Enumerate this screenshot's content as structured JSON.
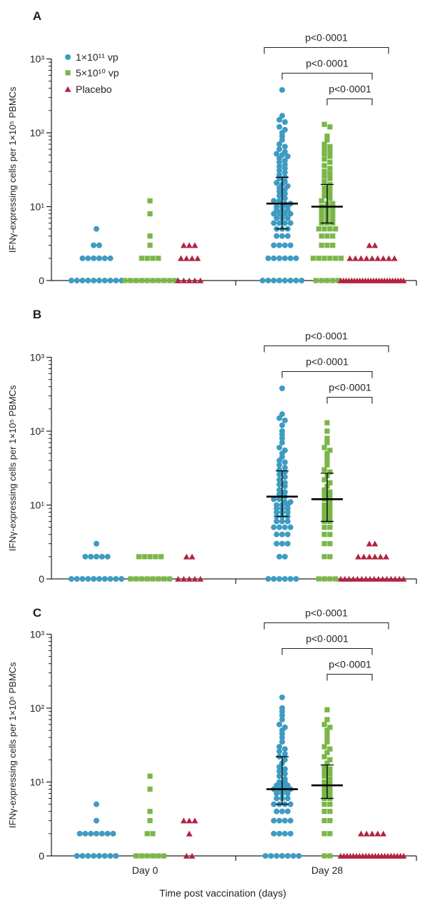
{
  "figure": {
    "xlabel": "Time post vaccination (days)",
    "ylabel": "IFNγ-expressing cells per 1×10⁵ PBMCs",
    "x_groups": [
      "Day 0",
      "Day 28"
    ],
    "y_tick_labels": [
      "0",
      "10¹",
      "10²",
      "10³"
    ],
    "legend": [
      {
        "label": "1×10¹¹ vp",
        "marker": "circle",
        "color": "#3e9bc1"
      },
      {
        "label": "5×10¹⁰ vp",
        "marker": "square",
        "color": "#7ab648"
      },
      {
        "label": "Placebo",
        "marker": "triangle",
        "color": "#b0243e"
      }
    ],
    "colors": {
      "axis": "#231f20",
      "error_bar": "#000000"
    }
  },
  "chart_data": [
    {
      "type": "scatter",
      "panel": "A",
      "yscale": "log (0 shown at baseline)",
      "ylim": [
        0,
        1000
      ],
      "groups": [
        "Day 0",
        "Day 28"
      ],
      "series": [
        {
          "name": "1×10¹¹ vp",
          "day0": {
            "values": [
              0,
              0,
              0,
              0,
              0,
              0,
              0,
              0,
              0,
              0,
              2,
              2,
              2,
              2,
              2,
              2,
              3,
              3,
              5
            ]
          },
          "day28": {
            "values": [
              0,
              0,
              0,
              0,
              0,
              0,
              0,
              0,
              2,
              2,
              2,
              2,
              2,
              2,
              3,
              3,
              3,
              3,
              4,
              4,
              4,
              5,
              5,
              5,
              6,
              6,
              6,
              6,
              7,
              7,
              7,
              8,
              8,
              8,
              8,
              9,
              9,
              9,
              10,
              10,
              10,
              11,
              11,
              12,
              12,
              13,
              14,
              15,
              16,
              17,
              18,
              19,
              20,
              21,
              22,
              24,
              25,
              27,
              29,
              31,
              33,
              35,
              37,
              40,
              42,
              45,
              48,
              50,
              52,
              55,
              60,
              65,
              70,
              80,
              90,
              100,
              110,
              120,
              140,
              150,
              170,
              380
            ],
            "median": 11,
            "iqr": [
              5,
              25
            ]
          }
        },
        {
          "name": "5×10¹⁰ vp",
          "day0": {
            "values": [
              0,
              0,
              0,
              0,
              0,
              0,
              0,
              0,
              0,
              0,
              2,
              2,
              2,
              2,
              3,
              4,
              8,
              12
            ]
          },
          "day28": {
            "values": [
              0,
              0,
              0,
              0,
              0,
              2,
              2,
              2,
              2,
              2,
              2,
              3,
              3,
              3,
              4,
              4,
              4,
              5,
              5,
              5,
              5,
              6,
              6,
              6,
              7,
              7,
              7,
              8,
              8,
              8,
              9,
              9,
              9,
              10,
              10,
              10,
              11,
              11,
              12,
              13,
              14,
              15,
              16,
              17,
              18,
              20,
              22,
              24,
              26,
              28,
              30,
              33,
              36,
              40,
              44,
              48,
              52,
              56,
              60,
              65,
              70,
              80,
              90,
              120,
              130
            ],
            "median": 10,
            "iqr": [
              6,
              20
            ]
          }
        },
        {
          "name": "Placebo",
          "day0": {
            "values": [
              0,
              0,
              0,
              0,
              0,
              2,
              2,
              2,
              2,
              3,
              3,
              3
            ]
          },
          "day28": {
            "values": [
              0,
              0,
              0,
              0,
              0,
              0,
              0,
              0,
              0,
              0,
              0,
              0,
              0,
              0,
              0,
              1,
              1,
              1,
              1,
              1,
              1,
              1,
              1,
              1,
              2,
              2,
              2,
              2,
              2,
              2,
              2,
              2,
              2,
              3,
              3
            ]
          }
        }
      ],
      "annotations": [
        {
          "text": "p<0·0001",
          "from": "1×10¹¹ vp Day 28",
          "to": "Placebo Day 28"
        },
        {
          "text": "p<0·0001",
          "from": "1×10¹¹ vp Day 28",
          "to": "Placebo Day 28"
        },
        {
          "text": "p<0·0001",
          "from": "5×10¹⁰ vp Day 28",
          "to": "Placebo Day 28"
        }
      ]
    },
    {
      "type": "scatter",
      "panel": "B",
      "yscale": "log (0 shown at baseline)",
      "ylim": [
        0,
        1000
      ],
      "groups": [
        "Day 0",
        "Day 28"
      ],
      "series": [
        {
          "name": "1×10¹¹ vp",
          "day0": {
            "values": [
              0,
              0,
              0,
              0,
              0,
              0,
              0,
              0,
              0,
              0,
              2,
              2,
              2,
              2,
              2,
              3
            ]
          },
          "day28": {
            "values": [
              0,
              0,
              0,
              0,
              0,
              0,
              2,
              2,
              3,
              3,
              3,
              4,
              4,
              4,
              5,
              5,
              5,
              5,
              6,
              6,
              6,
              7,
              7,
              7,
              8,
              8,
              8,
              9,
              9,
              9,
              10,
              10,
              10,
              11,
              11,
              12,
              12,
              13,
              14,
              15,
              16,
              18,
              19,
              20,
              22,
              24,
              26,
              28,
              30,
              32,
              35,
              38,
              40,
              45,
              50,
              55,
              60,
              70,
              80,
              90,
              100,
              120,
              140,
              150,
              170,
              380
            ],
            "median": 13,
            "iqr": [
              7,
              29
            ]
          }
        },
        {
          "name": "5×10¹⁰ vp",
          "day0": {
            "values": [
              0,
              0,
              0,
              0,
              0,
              0,
              0,
              0,
              2,
              2,
              2,
              2,
              2
            ]
          },
          "day28": {
            "values": [
              0,
              0,
              0,
              0,
              2,
              2,
              3,
              3,
              4,
              4,
              5,
              5,
              6,
              6,
              7,
              7,
              8,
              8,
              9,
              9,
              10,
              10,
              11,
              12,
              13,
              14,
              15,
              16,
              18,
              20,
              22,
              25,
              28,
              30,
              35,
              40,
              45,
              50,
              55,
              60,
              70,
              80,
              100,
              130
            ],
            "median": 12,
            "iqr": [
              6,
              27
            ]
          }
        },
        {
          "name": "Placebo",
          "day0": {
            "values": [
              0,
              0,
              0,
              0,
              0,
              2,
              2
            ]
          },
          "day28": {
            "values": [
              0,
              0,
              0,
              0,
              0,
              0,
              0,
              0,
              0,
              0,
              0,
              0,
              1,
              1,
              1,
              1,
              2,
              2,
              2,
              2,
              2,
              2,
              3,
              3
            ]
          }
        }
      ],
      "annotations": [
        {
          "text": "p<0·0001",
          "from": "1×10¹¹ vp Day 28",
          "to": "Placebo Day 28"
        },
        {
          "text": "p<0·0001",
          "from": "1×10¹¹ vp Day 28",
          "to": "Placebo Day 28"
        },
        {
          "text": "p<0·0001",
          "from": "5×10¹⁰ vp Day 28",
          "to": "Placebo Day 28"
        }
      ]
    },
    {
      "type": "scatter",
      "panel": "C",
      "yscale": "log (0 shown at baseline)",
      "ylim": [
        0,
        1000
      ],
      "groups": [
        "Day 0",
        "Day 28"
      ],
      "series": [
        {
          "name": "1×10¹¹ vp",
          "day0": {
            "values": [
              0,
              0,
              0,
              0,
              0,
              0,
              0,
              0,
              2,
              2,
              2,
              2,
              2,
              2,
              2,
              3,
              5
            ]
          },
          "day28": {
            "values": [
              0,
              0,
              0,
              0,
              0,
              0,
              0,
              2,
              2,
              2,
              2,
              3,
              3,
              3,
              3,
              4,
              4,
              4,
              5,
              5,
              5,
              5,
              6,
              6,
              6,
              7,
              7,
              7,
              8,
              8,
              8,
              8,
              9,
              9,
              9,
              10,
              10,
              11,
              12,
              13,
              14,
              15,
              16,
              18,
              20,
              22,
              24,
              26,
              28,
              30,
              35,
              40,
              45,
              50,
              55,
              60,
              70,
              80,
              90,
              100,
              140
            ],
            "median": 8,
            "iqr": [
              5,
              22
            ]
          }
        },
        {
          "name": "5×10¹⁰ vp",
          "day0": {
            "values": [
              0,
              0,
              0,
              0,
              0,
              0,
              2,
              2,
              3,
              4,
              8,
              12
            ]
          },
          "day28": {
            "values": [
              0,
              0,
              2,
              2,
              3,
              3,
              4,
              4,
              5,
              5,
              6,
              6,
              7,
              7,
              8,
              8,
              9,
              9,
              10,
              10,
              11,
              12,
              13,
              14,
              15,
              16,
              18,
              20,
              22,
              25,
              28,
              30,
              35,
              40,
              45,
              50,
              55,
              60,
              70,
              95
            ],
            "median": 9,
            "iqr": [
              6,
              17
            ]
          }
        },
        {
          "name": "Placebo",
          "day0": {
            "values": [
              0,
              0,
              2,
              3,
              3,
              3
            ]
          },
          "day28": {
            "values": [
              0,
              0,
              0,
              0,
              0,
              0,
              0,
              0,
              0,
              0,
              0,
              0,
              0,
              1,
              1,
              1,
              1,
              1,
              1,
              1,
              1,
              2,
              2,
              2,
              2,
              2
            ]
          }
        }
      ],
      "annotations": [
        {
          "text": "p<0·0001",
          "from": "1×10¹¹ vp Day 28",
          "to": "Placebo Day 28"
        },
        {
          "text": "p<0·0001",
          "from": "1×10¹¹ vp Day 28",
          "to": "Placebo Day 28"
        },
        {
          "text": "p<0·0001",
          "from": "5×10¹⁰ vp Day 28",
          "to": "Placebo Day 28"
        }
      ]
    }
  ]
}
